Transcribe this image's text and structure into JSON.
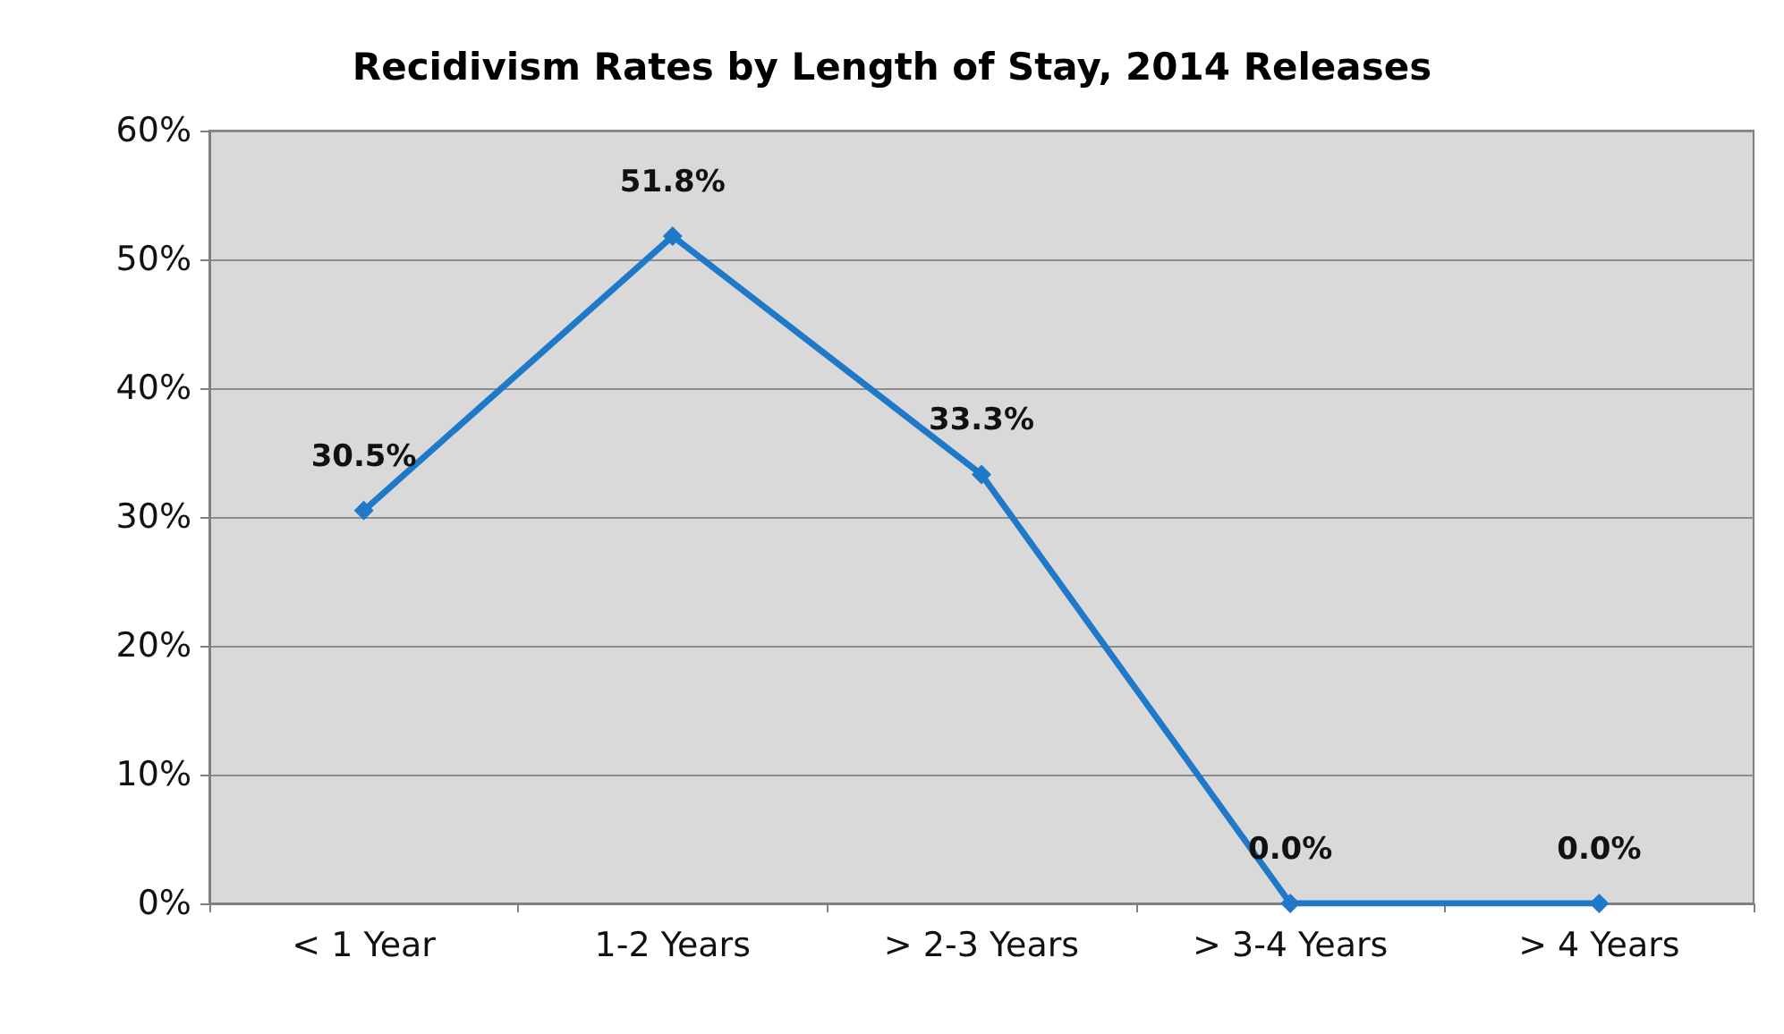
{
  "chart_data": {
    "type": "line",
    "title": "Recidivism Rates by Length of Stay, 2014 Releases",
    "categories": [
      "< 1 Year",
      "1-2 Years",
      "> 2-3 Years",
      "> 3-4 Years",
      "> 4 Years"
    ],
    "series": [
      {
        "color": "#1f78c8",
        "values": [
          30.5,
          51.8,
          33.3,
          0.0,
          0.0
        ],
        "value_labels": [
          "30.5%",
          "51.8%",
          "33.3%",
          "0.0%",
          "0.0%"
        ]
      }
    ],
    "ylim": [
      0,
      60
    ],
    "yticks": [
      {
        "value": 0,
        "label": "0%"
      },
      {
        "value": 10,
        "label": "10%"
      },
      {
        "value": 20,
        "label": "20%"
      },
      {
        "value": 30,
        "label": "30%"
      },
      {
        "value": 40,
        "label": "40%"
      },
      {
        "value": 50,
        "label": "50%"
      },
      {
        "value": 60,
        "label": "60%"
      }
    ],
    "grid": "y",
    "marker": "diamond",
    "line_style": "solid"
  }
}
